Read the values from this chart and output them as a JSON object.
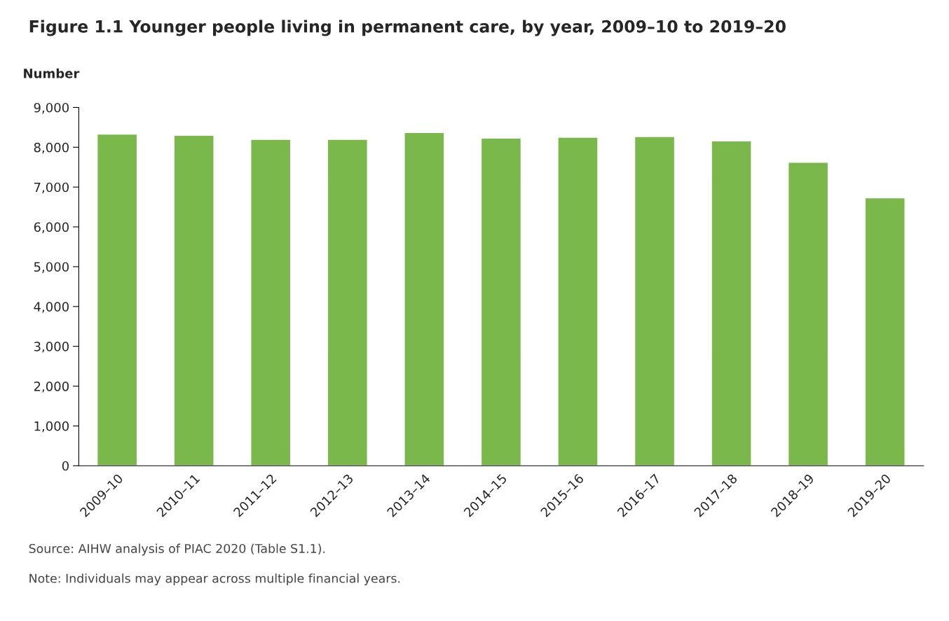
{
  "chart_data": {
    "type": "bar",
    "title": "Figure 1.1 Younger people living in permanent care, by year, 2009–10 to 2019–20",
    "ylabel": "Number",
    "categories": [
      "2009–10",
      "2010–11",
      "2011–12",
      "2012–13",
      "2013–14",
      "2014–15",
      "2015–16",
      "2016–17",
      "2017–18",
      "2018–19",
      "2019–20"
    ],
    "values": [
      8330,
      8300,
      8200,
      8200,
      8370,
      8230,
      8250,
      8270,
      8160,
      7620,
      6730
    ],
    "color": "#7ab84b",
    "ylim": [
      0,
      9000
    ],
    "yticks": [
      {
        "value": 0,
        "label": "0"
      },
      {
        "value": 1000,
        "label": "1,000"
      },
      {
        "value": 2000,
        "label": "2,000"
      },
      {
        "value": 3000,
        "label": "3,000"
      },
      {
        "value": 4000,
        "label": "4,000"
      },
      {
        "value": 5000,
        "label": "5,000"
      },
      {
        "value": 6000,
        "label": "6,000"
      },
      {
        "value": 7000,
        "label": "7,000"
      },
      {
        "value": 8000,
        "label": "8,000"
      },
      {
        "value": 9000,
        "label": "9,000"
      }
    ],
    "grid": false,
    "legend": false,
    "annotations": [
      "Source: AIHW analysis of PIAC 2020 (Table S1.1).",
      "Note: Individuals may appear across multiple financial years."
    ]
  }
}
